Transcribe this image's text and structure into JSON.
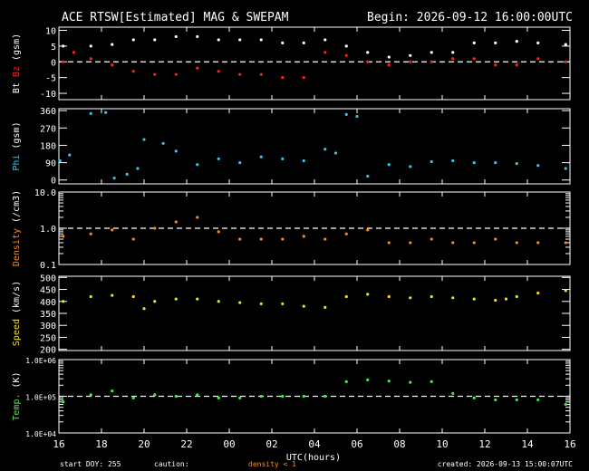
{
  "header": {
    "title": "ACE RTSW[Estimated] MAG & SWEPAM",
    "begin": "Begin: 2026-09-12 16:00:00UTC"
  },
  "footer": {
    "start": "start DOY: 255",
    "caution": "caution:",
    "density_note": "density < 1",
    "created": "created: 2026-09-13 15:00:07UTC"
  },
  "colors": {
    "background": "#000000",
    "axes": "#ffffff",
    "bt": "#ffffff",
    "bz": "#ff2020",
    "phi": "#33c8e8",
    "density": "#ff8c1a",
    "speed": "#f0e020",
    "temp": "#44ee44",
    "zero_line": "#ffffff"
  },
  "chart_data": {
    "type": "scatter",
    "x": {
      "label": "UTC(hours)",
      "tick_labels": [
        "16",
        "18",
        "20",
        "22",
        "00",
        "02",
        "04",
        "06",
        "08",
        "10",
        "12",
        "14",
        "16"
      ],
      "range_hours": [
        0,
        24
      ]
    },
    "panels": [
      {
        "id": "mag",
        "ylabel_parts": [
          "Bt",
          "Bz",
          "(gsm)"
        ],
        "ylabel_colors": [
          "#ffffff",
          "#ff2020",
          "#ffffff"
        ],
        "scale": "linear",
        "ylim": [
          -12,
          11
        ],
        "ticks": [
          10,
          5,
          0,
          -5,
          -10
        ],
        "tick_labels": [
          "10",
          "5",
          "0",
          "-5",
          "-10"
        ],
        "dashed": [
          0
        ],
        "series": [
          {
            "name": "Bt",
            "color": "#ffffff",
            "x": [
              0.2,
              1.5,
              2.5,
              3.5,
              4.5,
              5.5,
              6.5,
              7.5,
              8.5,
              9.5,
              10.5,
              11.5,
              12.5,
              13.5,
              14.5,
              15.5,
              16.5,
              17.5,
              18.5,
              19.5,
              20.5,
              21.5,
              22.5,
              23.8
            ],
            "y": [
              5,
              5,
              5.5,
              7,
              7,
              8,
              8,
              7,
              7,
              7,
              6,
              6,
              7,
              5,
              3,
              1.5,
              2,
              3,
              3,
              6,
              6,
              6.5,
              6,
              5.5
            ]
          },
          {
            "name": "Bz",
            "color": "#ff2020",
            "x": [
              0.2,
              0.7,
              1.5,
              2.5,
              3.5,
              4.5,
              5.5,
              6.5,
              7.5,
              8.5,
              9.5,
              10.5,
              11.5,
              12.5,
              13.5,
              14.5,
              15.5,
              16.5,
              17.5,
              18.5,
              19.5,
              20.5,
              21.5,
              22.5,
              23.8
            ],
            "y": [
              0,
              3,
              1,
              -1,
              -3,
              -4,
              -4,
              -2,
              -3,
              -4,
              -4,
              -5,
              -5,
              3,
              2,
              0,
              -1,
              0,
              0,
              1,
              1,
              -1,
              -1,
              1,
              0
            ]
          }
        ]
      },
      {
        "id": "phi",
        "ylabel_parts": [
          "Phi",
          "(gsm)"
        ],
        "ylabel_colors": [
          "#33c8e8",
          "#ffffff"
        ],
        "scale": "linear",
        "ylim": [
          -20,
          370
        ],
        "ticks": [
          360,
          270,
          180,
          90,
          0
        ],
        "tick_labels": [
          "360",
          "270",
          "180",
          "90",
          "0"
        ],
        "dashed": [],
        "series": [
          {
            "name": "Phi",
            "color": "#33c8e8",
            "x": [
              0.05,
              0.5,
              1.5,
              2.2,
              2.6,
              3.2,
              3.7,
              4.0,
              4.9,
              5.5,
              6.5,
              7.5,
              8.5,
              9.5,
              10.5,
              11.5,
              12.5,
              13.0,
              13.5,
              14.0,
              14.5,
              15.5,
              16.5,
              17.5,
              18.5,
              19.5,
              20.5,
              21.5,
              22.5,
              23.8
            ],
            "y": [
              100,
              130,
              345,
              350,
              10,
              30,
              60,
              210,
              190,
              150,
              80,
              110,
              90,
              120,
              110,
              100,
              160,
              140,
              340,
              330,
              20,
              80,
              70,
              95,
              100,
              90,
              90,
              85,
              75,
              60
            ]
          }
        ]
      },
      {
        "id": "density",
        "ylabel_parts": [
          "Density",
          "(/cm3)"
        ],
        "ylabel_colors": [
          "#ff8c1a",
          "#ffffff"
        ],
        "scale": "log",
        "ylim": [
          0.1,
          10
        ],
        "ticks": [
          10,
          1,
          0.1
        ],
        "tick_labels": [
          "10.0",
          "1.0",
          "0.1"
        ],
        "dashed": [
          1
        ],
        "series": [
          {
            "name": "Density",
            "color": "#ff8c1a",
            "x": [
              0.2,
              1.5,
              2.5,
              3.5,
              4.5,
              5.5,
              6.5,
              7.5,
              8.5,
              9.5,
              10.5,
              11.5,
              12.5,
              13.5,
              14.5,
              15.5,
              16.5,
              17.5,
              18.5,
              19.5,
              20.5,
              21.5,
              22.5,
              23.8
            ],
            "y": [
              0.6,
              0.7,
              0.9,
              0.5,
              1.0,
              1.5,
              2.0,
              0.8,
              0.5,
              0.5,
              0.5,
              0.6,
              0.5,
              0.7,
              0.9,
              0.4,
              0.4,
              0.5,
              0.4,
              0.4,
              0.5,
              0.4,
              0.4,
              0.4
            ]
          }
        ]
      },
      {
        "id": "speed",
        "ylabel_parts": [
          "Speed",
          "(km/s)"
        ],
        "ylabel_colors": [
          "#f0e020",
          "#ffffff"
        ],
        "scale": "linear",
        "ylim": [
          195,
          505
        ],
        "ticks": [
          500,
          450,
          400,
          350,
          300,
          250,
          200
        ],
        "tick_labels": [
          "500",
          "450",
          "400",
          "350",
          "300",
          "250",
          "200"
        ],
        "dashed": [],
        "series": [
          {
            "name": "Speed",
            "color": "#f0e020",
            "x": [
              0.2,
              1.5,
              2.5,
              3.5,
              4.0,
              4.5,
              5.5,
              6.5,
              7.5,
              8.5,
              9.5,
              10.5,
              11.5,
              12.5,
              13.5,
              14.5,
              15.5,
              16.5,
              17.5,
              18.5,
              19.5,
              20.5,
              21.0,
              21.5,
              22.5,
              23.8
            ],
            "y": [
              400,
              420,
              425,
              420,
              370,
              400,
              410,
              410,
              400,
              395,
              390,
              390,
              380,
              375,
              420,
              430,
              420,
              415,
              420,
              415,
              410,
              405,
              410,
              420,
              435,
              445
            ]
          }
        ]
      },
      {
        "id": "temp",
        "ylabel_parts": [
          "Temp.",
          "(K)"
        ],
        "ylabel_colors": [
          "#44ee44",
          "#ffffff"
        ],
        "scale": "log",
        "ylim": [
          10000,
          1000000
        ],
        "ticks": [
          1000000,
          100000,
          10000
        ],
        "tick_labels": [
          "1.0E+06",
          "1.0E+05",
          "1.0E+04"
        ],
        "dashed": [
          100000
        ],
        "series": [
          {
            "name": "Temp.",
            "color": "#44ee44",
            "x": [
              0.2,
              1.5,
              2.5,
              3.5,
              4.5,
              5.5,
              6.5,
              7.5,
              8.5,
              9.5,
              10.5,
              11.5,
              12.5,
              13.5,
              14.5,
              15.5,
              16.5,
              17.5,
              18.5,
              19.5,
              20.5,
              21.5,
              22.5,
              23.8
            ],
            "y": [
              70000,
              110000,
              140000,
              90000,
              110000,
              100000,
              110000,
              90000,
              90000,
              100000,
              100000,
              100000,
              100000,
              250000,
              280000,
              260000,
              240000,
              250000,
              120000,
              90000,
              80000,
              80000,
              80000,
              60000
            ]
          }
        ]
      }
    ]
  }
}
